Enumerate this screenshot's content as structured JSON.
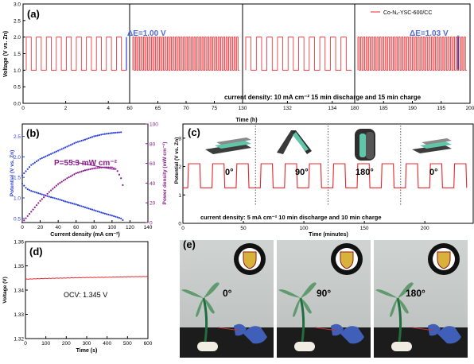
{
  "panel_labels": {
    "a": "(a)",
    "b": "(b)",
    "c": "(c)",
    "d": "(d)",
    "e": "(e)"
  },
  "chart_data": [
    {
      "id": "a",
      "type": "line",
      "ylabel": "Voltage (V vs. Zn)",
      "xlabel": "Time (h)",
      "ylim": [
        0,
        3.0
      ],
      "yticks": [
        "0.0",
        "0.5",
        "1.0",
        "1.5",
        "2.0",
        "2.5",
        "3.0"
      ],
      "legend": "Co-Nₓ-YSC-600/CC",
      "legend_placement": "top-right",
      "annotations": [
        "ΔE=1.00 V",
        "ΔE=1.03 V"
      ],
      "note": "current density: 10 mA cm⁻²   15 min discharge and 15 min charge",
      "segments": [
        {
          "ticks": [
            "0",
            "2",
            "4"
          ],
          "range": [
            0,
            5
          ]
        },
        {
          "ticks": [
            "60",
            "65",
            "70",
            "75"
          ],
          "range": [
            60,
            80
          ]
        },
        {
          "ticks": [
            "130",
            "132",
            "134"
          ],
          "range": [
            130,
            135
          ]
        },
        {
          "ticks": [
            "180",
            "185",
            "190",
            "195",
            "200"
          ],
          "range": [
            180,
            200
          ]
        }
      ],
      "series": [
        {
          "name": "Co-Nₓ-YSC-600/CC",
          "charge_v": 2.0,
          "discharge_v": 1.0,
          "cycle_h": 0.5
        }
      ]
    },
    {
      "id": "b",
      "type": "line",
      "xlabel": "Current density (mA cm⁻²)",
      "ylabel": "Potential (V vs. Zn)",
      "ylabel2": "Power density (mW cm⁻²)",
      "xticks": [
        "0",
        "20",
        "40",
        "60",
        "80",
        "100",
        "120",
        "140"
      ],
      "yticks": [
        "0.5",
        "1.0",
        "1.5",
        "2.0",
        "2.5"
      ],
      "y2ticks": [
        "0",
        "20",
        "40",
        "60",
        "80",
        "100"
      ],
      "xlim": [
        0,
        140
      ],
      "ylim": [
        0.4,
        2.8
      ],
      "y2lim": [
        0,
        100
      ],
      "annotation": "P=55.3 mW cm⁻²",
      "peak": {
        "x": 103,
        "y": 55.3
      },
      "charge_curve": {
        "x": [
          0,
          10,
          20,
          30,
          40,
          50,
          60,
          70,
          80,
          90,
          100,
          110
        ],
        "y": [
          1.55,
          1.8,
          1.95,
          2.05,
          2.15,
          2.25,
          2.35,
          2.42,
          2.5,
          2.55,
          2.58,
          2.6
        ]
      },
      "discharge_curve": {
        "x": [
          0,
          5,
          10,
          20,
          30,
          40,
          50,
          60,
          70,
          80,
          90,
          100,
          110,
          112
        ],
        "y": [
          1.35,
          1.22,
          1.17,
          1.1,
          1.03,
          0.97,
          0.9,
          0.84,
          0.77,
          0.7,
          0.63,
          0.57,
          0.5,
          0.46
        ]
      },
      "power_curve": {
        "x": [
          0,
          10,
          20,
          30,
          40,
          50,
          60,
          70,
          80,
          90,
          100,
          105,
          110,
          112
        ],
        "y": [
          0,
          11,
          22,
          31,
          39,
          45,
          50,
          53,
          55,
          56,
          56,
          54,
          45,
          38
        ]
      }
    },
    {
      "id": "c",
      "type": "line",
      "xlabel": "Time (minutes)",
      "ylabel": "Potential (V vs. Zn)",
      "xticks": [
        "0",
        "50",
        "100",
        "150",
        "200"
      ],
      "yticks": [
        "0",
        "1",
        "2",
        "3"
      ],
      "xlim": [
        0,
        240
      ],
      "ylim": [
        0,
        3.5
      ],
      "angles": [
        "0°",
        "90°",
        "180°",
        "0°"
      ],
      "note": "current density: 5 mA cm⁻²   10 min discharge and 10 min charge",
      "series": [
        {
          "charge_v": 2.1,
          "discharge_v": 1.25,
          "cycle_min": 20
        }
      ]
    },
    {
      "id": "d",
      "type": "line",
      "xlabel": "Time (s)",
      "ylabel": "Voltage (V)",
      "xticks": [
        "0",
        "100",
        "200",
        "300",
        "400",
        "500",
        "600"
      ],
      "yticks": [
        "1.32",
        "1.33",
        "1.34",
        "1.35",
        "1.36"
      ],
      "xlim": [
        0,
        600
      ],
      "ylim": [
        1.32,
        1.36
      ],
      "annotation": "OCV: 1.345 V",
      "series": [
        {
          "x": [
            0,
            100,
            200,
            300,
            400,
            500,
            600
          ],
          "y": [
            1.3445,
            1.3448,
            1.345,
            1.3452,
            1.3453,
            1.3455,
            1.3456
          ]
        }
      ]
    }
  ],
  "photos": {
    "angles": [
      "0°",
      "90°",
      "180°"
    ],
    "seal_text": "UNIVERSITY OF WATERLOO"
  },
  "colors": {
    "red": "#e8262b",
    "blue": "#2b3fd8",
    "purple": "#8a1c8a"
  }
}
